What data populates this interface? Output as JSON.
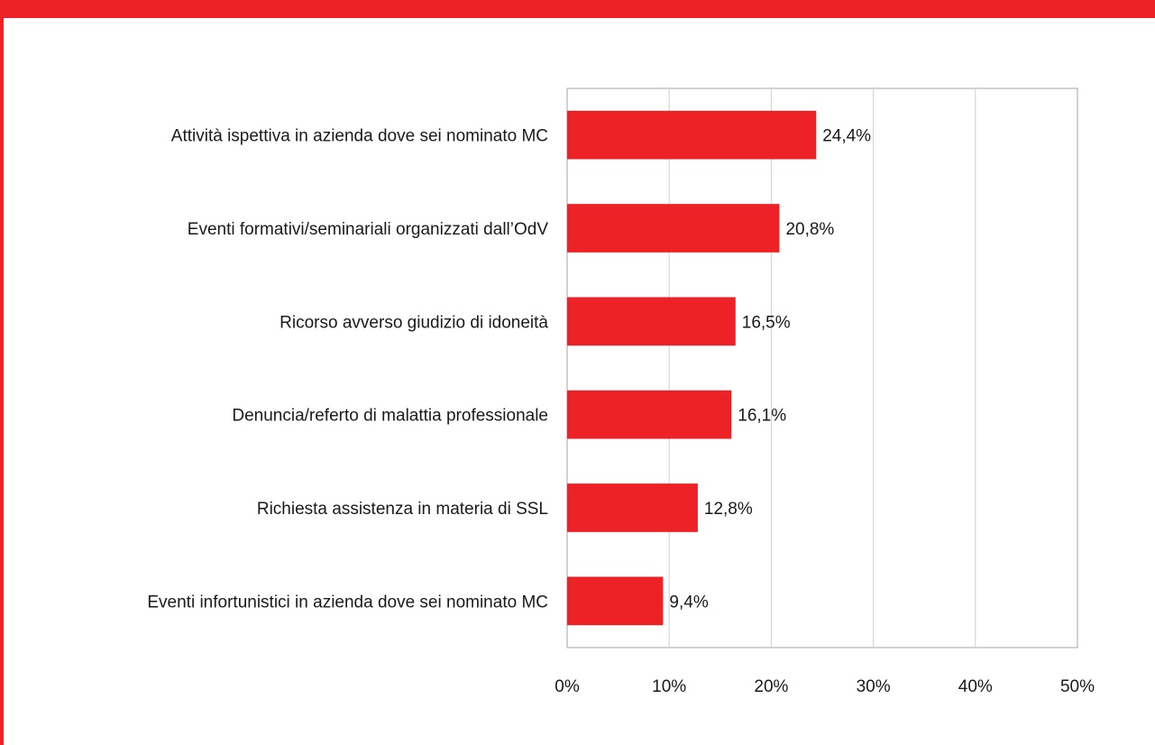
{
  "chart_data": {
    "type": "bar",
    "orientation": "horizontal",
    "categories": [
      "Attività ispettiva in azienda dove sei nominato MC",
      "Eventi formativi/seminariali organizzati dall’OdV",
      "Ricorso avverso giudizio di idoneità",
      "Denuncia/referto di malattia professionale",
      "Richiesta  assistenza in materia di SSL",
      "Eventi infortunistici in azienda dove sei nominato MC"
    ],
    "values": [
      24.4,
      20.8,
      16.5,
      16.1,
      12.8,
      9.4
    ],
    "data_labels": [
      "24,4%",
      "20,8%",
      "16,5%",
      "16,1%",
      "12,8%",
      "9,4%"
    ],
    "xlim": [
      0,
      50
    ],
    "x_ticks": [
      0,
      10,
      20,
      30,
      40,
      50
    ],
    "x_tick_labels": [
      "0%",
      "10%",
      "20%",
      "30%",
      "40%",
      "50%"
    ],
    "grid": true,
    "bar_color": "#ec2227",
    "accent_color": "#ec2227",
    "title": "",
    "xlabel": "",
    "ylabel": ""
  }
}
